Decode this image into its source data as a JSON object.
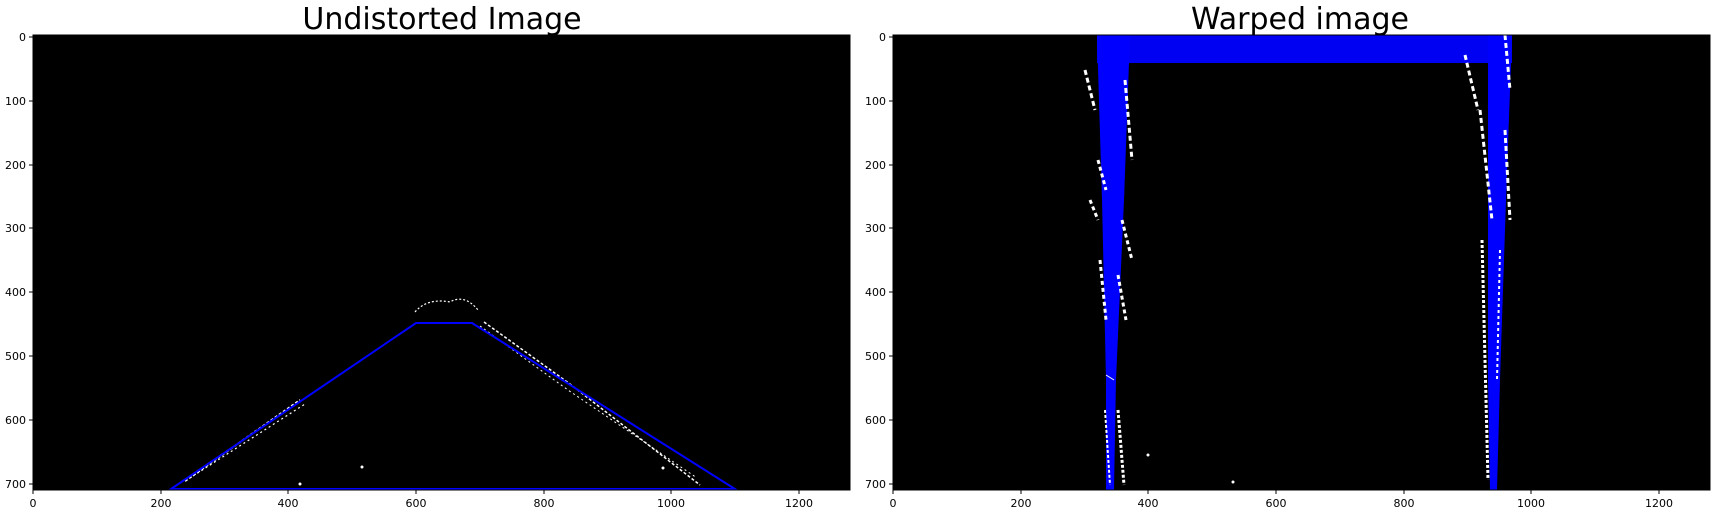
{
  "panels": [
    {
      "title": "Undistorted Image",
      "x_ticks": [
        "0",
        "200",
        "400",
        "600",
        "800",
        "1000",
        "1200"
      ],
      "y_ticks": [
        "0",
        "100",
        "200",
        "300",
        "400",
        "500",
        "600",
        "700"
      ],
      "image_description_name": "binary-lane-image",
      "overlay_color": "#0000ff"
    },
    {
      "title": "Warped image",
      "x_ticks": [
        "0",
        "200",
        "400",
        "600",
        "800",
        "1000",
        "1200"
      ],
      "y_ticks": [
        "0",
        "100",
        "200",
        "300",
        "400",
        "500",
        "600",
        "700"
      ],
      "image_description_name": "warped-lane-image",
      "overlay_color": "#0000ff"
    }
  ],
  "colors": {
    "background": "#000000",
    "lane": "#ffffff",
    "overlay": "#0000ff"
  }
}
